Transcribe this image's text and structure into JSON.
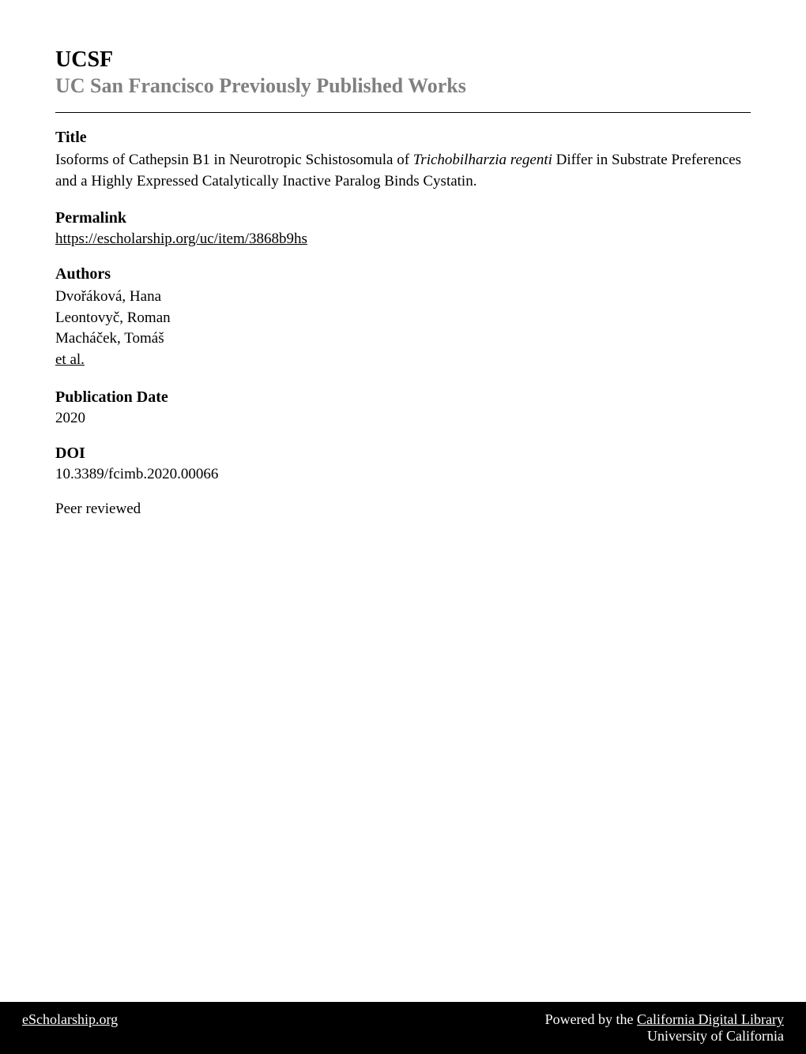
{
  "header": {
    "institution": "UCSF",
    "subtitle": "UC San Francisco Previously Published Works"
  },
  "sections": {
    "title": {
      "label": "Title",
      "text_part1": "Isoforms of Cathepsin B1 in Neurotropic Schistosomula of ",
      "text_italic": "Trichobilharzia regenti",
      "text_part2": " Differ in Substrate Preferences and a Highly Expressed Catalytically Inactive Paralog Binds Cystatin."
    },
    "permalink": {
      "label": "Permalink",
      "url": "https://escholarship.org/uc/item/3868b9hs"
    },
    "authors": {
      "label": "Authors",
      "list": [
        "Dvořáková, Hana",
        "Leontovyč, Roman",
        "Macháček, Tomáš"
      ],
      "et_al": "et al."
    },
    "publication_date": {
      "label": "Publication Date",
      "value": "2020"
    },
    "doi": {
      "label": "DOI",
      "value": "10.3389/fcimb.2020.00066"
    },
    "peer_reviewed": {
      "text": "Peer reviewed"
    }
  },
  "footer": {
    "left": "eScholarship.org",
    "right_prefix": "Powered by the ",
    "right_underline": "California Digital Library",
    "right_line2": "University of California"
  },
  "styling": {
    "background_color": "#ffffff",
    "text_color": "#000000",
    "subtitle_color": "#808080",
    "footer_bg": "#000000",
    "footer_text": "#ffffff",
    "institution_fontsize": 28,
    "subtitle_fontsize": 26,
    "section_label_fontsize": 20,
    "body_fontsize": 19,
    "footer_fontsize": 18
  }
}
